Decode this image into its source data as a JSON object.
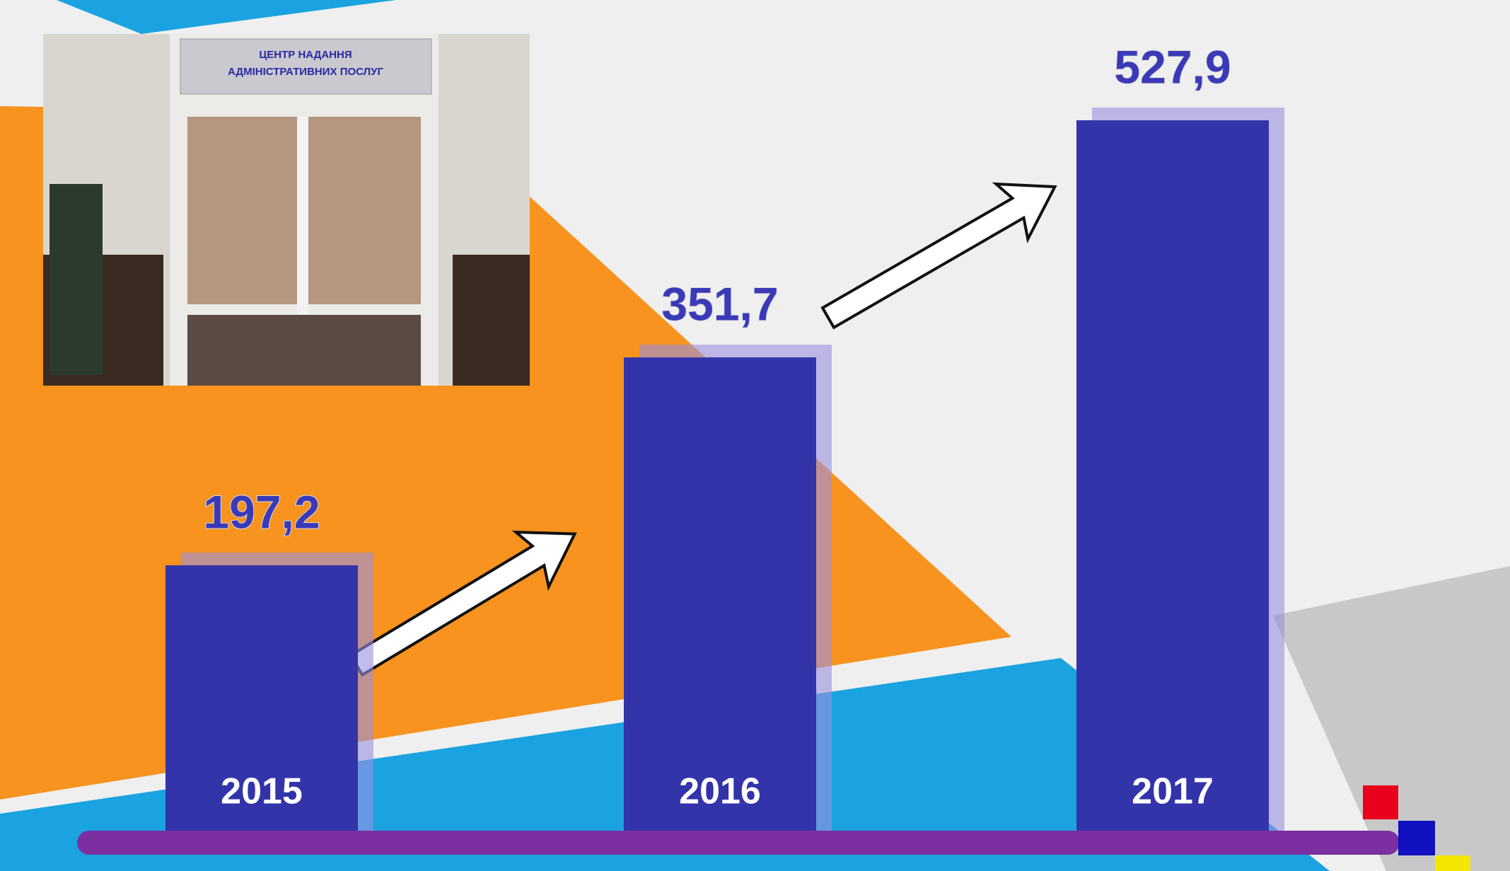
{
  "chart_data": {
    "type": "bar",
    "categories": [
      "2015",
      "2016",
      "2017"
    ],
    "values": [
      197.2,
      351.7,
      527.9
    ],
    "value_labels": [
      "197,2",
      "351,7",
      "527,9"
    ],
    "color": "#3333aa"
  },
  "photo": {
    "sign_lines": [
      "ЦЕНТР НАДАННЯ",
      "АДМІНІСТРАТИВНИХ ПОСЛУГ"
    ]
  }
}
